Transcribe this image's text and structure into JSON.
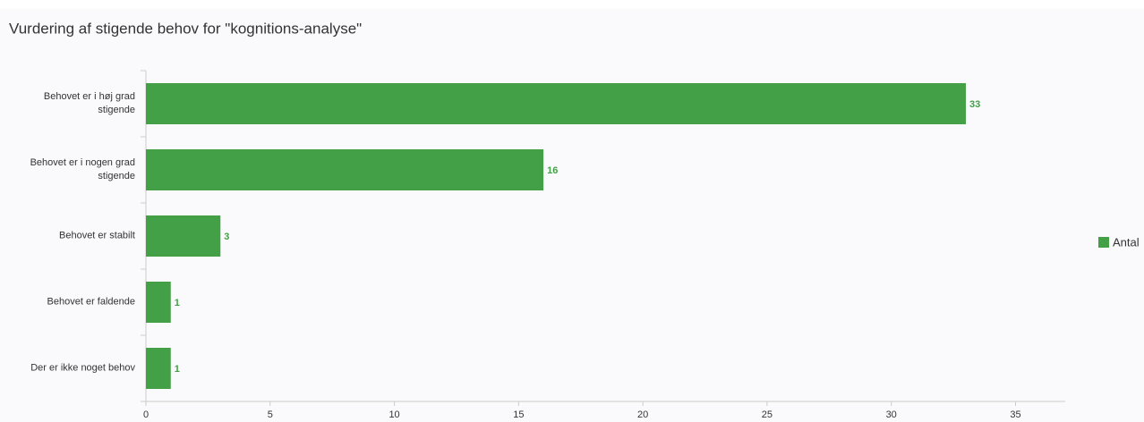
{
  "chart_data": {
    "type": "bar",
    "orientation": "horizontal",
    "title": "Vurdering af stigende behov for \"kognitions-analyse\"",
    "categories": [
      "Behovet er i høj grad stigende",
      "Behovet er i nogen grad stigende",
      "Behovet er stabilt",
      "Behovet er faldende",
      "Der er ikke noget behov"
    ],
    "series": [
      {
        "name": "Antal",
        "color": "#43a047",
        "values": [
          33,
          16,
          3,
          1,
          1
        ]
      }
    ],
    "xlim": [
      0,
      37
    ],
    "xticks": [
      0,
      5,
      10,
      15,
      20,
      25,
      30,
      35
    ],
    "legend": "right"
  }
}
